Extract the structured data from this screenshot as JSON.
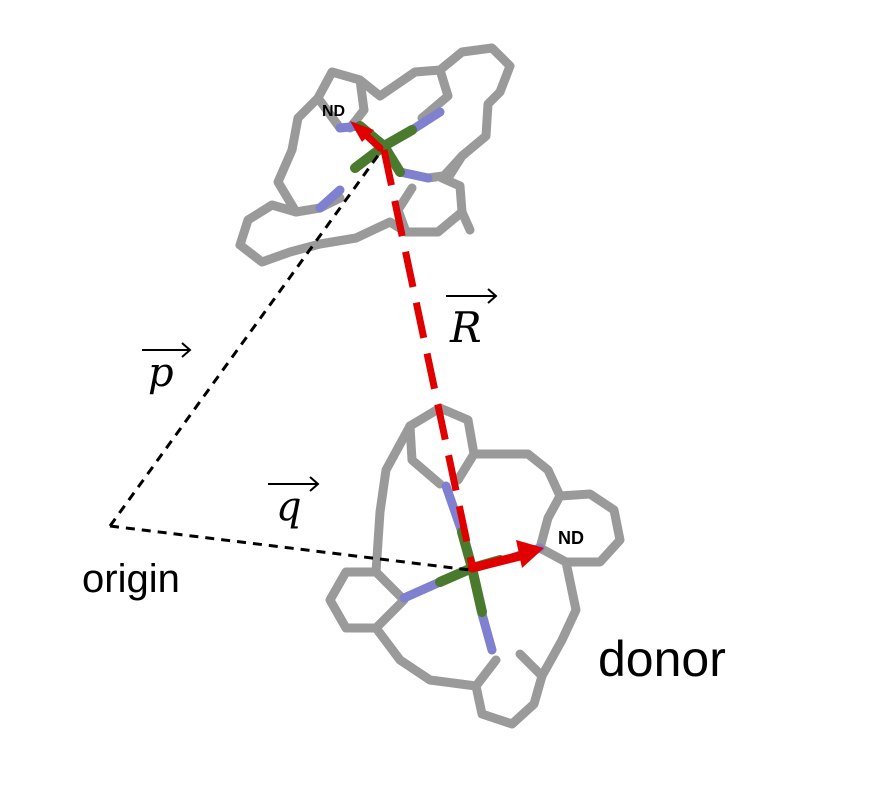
{
  "labels": {
    "origin": "origin",
    "donor": "donor",
    "nd_top": "ND",
    "nd_bottom": "ND",
    "vec_p": "p",
    "vec_q": "q",
    "vec_r": "R"
  },
  "colors": {
    "carbon": "#9a9a9a",
    "nitrogen": "#8080d0",
    "metal": "#4a7a2e",
    "vector_red": "#e00000",
    "dashed_black": "#000000"
  }
}
